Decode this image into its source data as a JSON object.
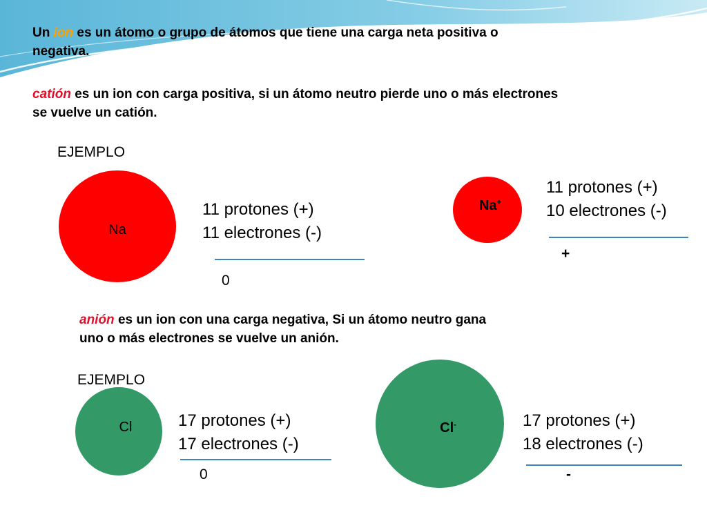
{
  "intro": {
    "prefix": "Un ",
    "keyword": "ion",
    "suffix_line1": " es un átomo o grupo de átomos que tiene una carga neta positiva o",
    "line2": "negativa."
  },
  "cation_def": {
    "keyword": "catión",
    "suffix_line1": " es un ion con carga positiva, si un átomo neutro pierde uno o más electrones",
    "line2": "se vuelve un catión."
  },
  "anion_def": {
    "keyword": "anión",
    "suffix_line1": " es un ion con una carga negativa, Si un átomo neutro gana",
    "line2": "uno o más electrones se vuelve un anión."
  },
  "example1": {
    "label": "EJEMPLO",
    "neutral": {
      "symbol": "Na",
      "protons": "11 protones (+)",
      "electrons": "11 electrones (-)",
      "charge": "0"
    },
    "ion": {
      "symbol": "Na",
      "superscript": "+",
      "protons": "11 protones (+)",
      "electrons": "10 electrones (-)",
      "charge": "+"
    }
  },
  "example2": {
    "label": "EJEMPLO",
    "neutral": {
      "symbol": "Cl",
      "protons": "17 protones (+)",
      "electrons": "17 electrones (-)",
      "charge": "0"
    },
    "ion": {
      "symbol": "Cl",
      "superscript": "-",
      "protons": "17 protones (+)",
      "electrons": "18 electrones (-)",
      "charge": "-"
    }
  },
  "colors": {
    "sodium": "#ff0000",
    "chlorine": "#339966",
    "divider": "#3b84c4",
    "keyword_ion": "#ffa000",
    "keyword_cation_anion": "#e0102a"
  }
}
